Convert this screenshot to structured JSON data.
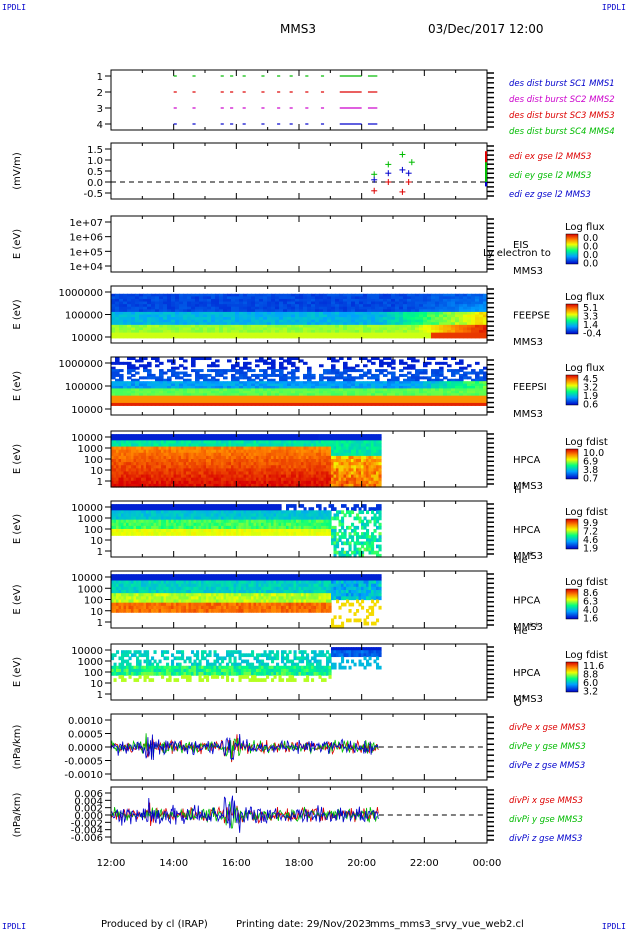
{
  "header": {
    "corner_label": "IPDLI",
    "mission": "MMS3",
    "datetime": "03/Dec/2017 12:00"
  },
  "footer": {
    "produced_by": "Produced by cl (IRAP)",
    "printing_date": "Printing date: 29/Nov/2023",
    "file_name": "mms_mms3_srvy_vue_web2.cl"
  },
  "time_axis": {
    "labels": [
      "12:00",
      "14:00",
      "16:00",
      "18:00",
      "20:00",
      "22:00",
      "00:00"
    ]
  },
  "panels": [
    {
      "id": "dist",
      "type": "event-lines",
      "yticks": [
        "1",
        "2",
        "3",
        "4"
      ],
      "legend": [
        {
          "text": "des dist burst SC1 MMS1",
          "color": "#0000cc"
        },
        {
          "text": "des dist burst SC2 MMS2",
          "color": "#cc00cc"
        },
        {
          "text": "des dist burst SC3 MMS3",
          "color": "#dd0000"
        },
        {
          "text": "des dist burst SC4 MMS4",
          "color": "#00bb00"
        }
      ]
    },
    {
      "id": "edi",
      "type": "line",
      "ylabel": "(mV/m)",
      "yticks": [
        "1.5",
        "1.0",
        "0.5",
        "0.0",
        "-0.5"
      ],
      "legend": [
        {
          "text": "edi ex gse l2 MMS3",
          "color": "#dd0000"
        },
        {
          "text": "edi ey gse l2 MMS3",
          "color": "#00bb00"
        },
        {
          "text": "edi ez gse l2 MMS3",
          "color": "#0000cc"
        }
      ]
    },
    {
      "id": "eis",
      "type": "spectrogram",
      "ylabel": "E (eV)",
      "yticks": [
        "1e+07",
        "1e+06",
        "1e+05",
        "1e+04"
      ],
      "inst": "EIS",
      "extra": "Ly electron to",
      "sc": "MMS3",
      "cb_title": "Log flux",
      "cb_values": [
        "0.0",
        "0.0",
        "0.0",
        "0.0"
      ]
    },
    {
      "id": "feepse",
      "type": "spectrogram",
      "ylabel": "E (eV)",
      "yticks": [
        "1000000",
        "100000",
        "10000"
      ],
      "inst": "FEEPSE",
      "sc": "MMS3",
      "cb_title": "Log flux",
      "cb_values": [
        "5.1",
        "3.3",
        "1.4",
        "-0.4"
      ]
    },
    {
      "id": "feepsi",
      "type": "spectrogram",
      "ylabel": "E (eV)",
      "yticks": [
        "1000000",
        "100000",
        "10000"
      ],
      "inst": "FEEPSI",
      "sc": "MMS3",
      "cb_title": "Log flux",
      "cb_values": [
        "4.5",
        "3.2",
        "1.9",
        "0.6"
      ]
    },
    {
      "id": "hpca_h",
      "type": "spectrogram",
      "ylabel": "E (eV)",
      "yticks": [
        "10000",
        "1000",
        "100",
        "10",
        "1"
      ],
      "inst": "HPCA",
      "sc": "MMS3",
      "species": "H",
      "charge": "+",
      "cb_title": "Log fdist",
      "cb_values": [
        "10.0",
        "6.9",
        "3.8",
        "0.7"
      ]
    },
    {
      "id": "hpca_he1",
      "type": "spectrogram",
      "ylabel": "E (eV)",
      "yticks": [
        "10000",
        "1000",
        "100",
        "10",
        "1"
      ],
      "inst": "HPCA",
      "sc": "MMS3",
      "species": "He",
      "charge": "+",
      "cb_title": "Log fdist",
      "cb_values": [
        "9.9",
        "7.2",
        "4.6",
        "1.9"
      ]
    },
    {
      "id": "hpca_he2",
      "type": "spectrogram",
      "ylabel": "E (eV)",
      "yticks": [
        "10000",
        "1000",
        "100",
        "10",
        "1"
      ],
      "inst": "HPCA",
      "sc": "MMS3",
      "species": "He",
      "charge": "++",
      "cb_title": "Log fdist",
      "cb_values": [
        "8.6",
        "6.3",
        "4.0",
        "1.6"
      ]
    },
    {
      "id": "hpca_o",
      "type": "spectrogram",
      "ylabel": "E (eV)",
      "yticks": [
        "10000",
        "1000",
        "100",
        "10",
        "1"
      ],
      "inst": "HPCA",
      "sc": "MMS3",
      "species": "O",
      "charge": "+",
      "cb_title": "Log fdist",
      "cb_values": [
        "11.6",
        "8.8",
        "6.0",
        "3.2"
      ]
    },
    {
      "id": "divpe",
      "type": "line",
      "ylabel": "(nPa/km)",
      "yticks": [
        "0.0010",
        "0.0005",
        "0.0000",
        "-0.0005",
        "-0.0010"
      ],
      "legend": [
        {
          "text": "divPe x gse MMS3",
          "color": "#dd0000"
        },
        {
          "text": "divPe y gse MMS3",
          "color": "#00bb00"
        },
        {
          "text": "divPe z gse MMS3",
          "color": "#0000cc"
        }
      ]
    },
    {
      "id": "divpi",
      "type": "line",
      "ylabel": "(nPa/km)",
      "yticks": [
        "0.006",
        "0.004",
        "0.002",
        "0.000",
        "-0.002",
        "-0.004",
        "-0.006"
      ],
      "legend": [
        {
          "text": "divPi x gse MMS3",
          "color": "#dd0000"
        },
        {
          "text": "divPi y gse MMS3",
          "color": "#00bb00"
        },
        {
          "text": "divPi z gse MMS3",
          "color": "#0000cc"
        }
      ]
    }
  ],
  "chart_data": {
    "type": "multi-panel time series / spectrogram",
    "time_range": [
      "2017-12-03T12:00",
      "2017-12-04T00:00"
    ],
    "x_ticks": [
      "12:00",
      "14:00",
      "16:00",
      "18:00",
      "20:00",
      "22:00",
      "00:00"
    ],
    "edi_points": [
      {
        "series": "edi ex gse l2 MMS3",
        "color": "#dd0000",
        "t": [
          20.4,
          20.85,
          21.3,
          21.5
        ],
        "v": [
          -0.4,
          0.0,
          -0.45,
          0.0
        ]
      },
      {
        "series": "edi ey gse l2 MMS3",
        "color": "#00bb00",
        "t": [
          20.4,
          20.85,
          21.3,
          21.6
        ],
        "v": [
          0.35,
          0.8,
          1.25,
          0.9
        ]
      },
      {
        "series": "edi ez gse l2 MMS3",
        "color": "#0000cc",
        "t": [
          20.4,
          20.85,
          21.3,
          21.5
        ],
        "v": [
          0.1,
          0.4,
          0.55,
          0.4
        ]
      }
    ],
    "burst_intervals": [
      [
        14.0,
        14.1
      ],
      [
        14.6,
        14.7
      ],
      [
        15.5,
        15.6
      ],
      [
        15.8,
        15.9
      ],
      [
        16.2,
        16.3
      ],
      [
        16.8,
        16.9
      ],
      [
        17.3,
        17.4
      ],
      [
        17.7,
        17.8
      ],
      [
        18.2,
        18.3
      ],
      [
        18.7,
        18.8
      ],
      [
        19.3,
        20.0
      ],
      [
        20.2,
        20.5
      ]
    ],
    "hpca_data_end": "20:35"
  }
}
